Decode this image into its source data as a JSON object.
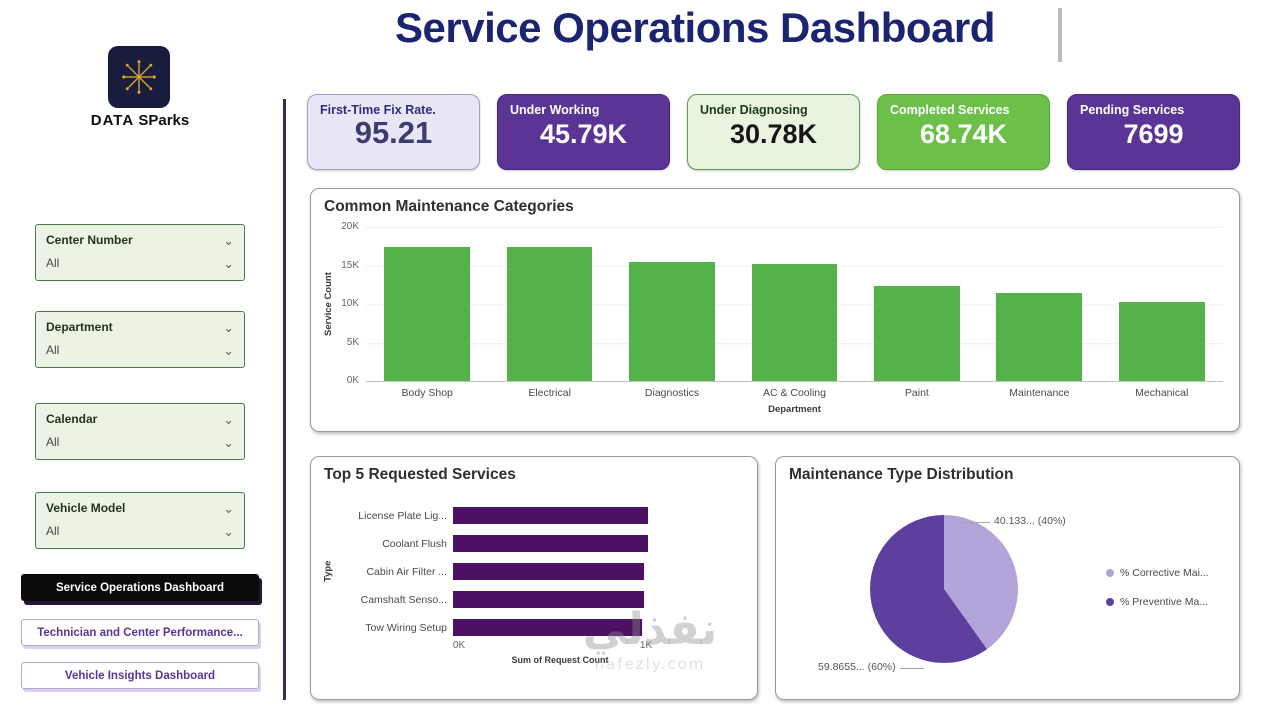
{
  "page": {
    "title": "Service Operations Dashboard",
    "brand": {
      "word1": "DATA",
      "word2": "SParks"
    }
  },
  "icons": {
    "chevron": "⌄"
  },
  "sidebar": {
    "filters": [
      {
        "label": "Center Number",
        "value": "All"
      },
      {
        "label": "Department",
        "value": "All"
      },
      {
        "label": "Calendar",
        "value": "All"
      },
      {
        "label": "Vehicle Model",
        "value": "All"
      }
    ],
    "nav": [
      {
        "label": "Service Operations Dashboard",
        "active": true
      },
      {
        "label": "Technician and Center Performance...",
        "active": false
      },
      {
        "label": "Vehicle Insights Dashboard",
        "active": false
      }
    ]
  },
  "kpis": [
    {
      "label": "First-Time Fix Rate.",
      "value": "95.21",
      "variant": "lavender"
    },
    {
      "label": "Under Working",
      "value": "45.79K",
      "variant": "purple"
    },
    {
      "label": "Under Diagnosing",
      "value": "30.78K",
      "variant": "mint"
    },
    {
      "label": "Completed Services",
      "value": "68.74K",
      "variant": "green"
    },
    {
      "label": "Pending Services",
      "value": "7699",
      "variant": "purple"
    }
  ],
  "colors": {
    "title_navy": "#1b2470",
    "purple_card": "#5a3596",
    "green_card": "#6cc04a",
    "bar_green": "#53b348",
    "bar_purple": "#4c1065",
    "pie_light": "#b2a4d8",
    "pie_dark": "#5d3f9d"
  },
  "chart_data": [
    {
      "type": "bar",
      "title": "Common Maintenance Categories",
      "categories": [
        "Body Shop",
        "Electrical",
        "Diagnostics",
        "AC & Cooling",
        "Paint",
        "Maintenance",
        "Mechanical"
      ],
      "values": [
        17400,
        17400,
        15500,
        15200,
        12400,
        11400,
        10300
      ],
      "xlabel": "Department",
      "ylabel": "Service Count",
      "ylim": [
        0,
        20000
      ],
      "yticks": [
        "20K",
        "15K",
        "10K",
        "5K",
        "0K"
      ],
      "grid": true,
      "bar_color": "#53b348"
    },
    {
      "type": "bar-horizontal",
      "title": "Top 5 Requested Services",
      "categories": [
        "License Plate Lig...",
        "Coolant Flush",
        "Cabin Air Filter ...",
        "Camshaft Senso...",
        "Tow Wiring Setup"
      ],
      "values": [
        1040,
        1040,
        1020,
        1020,
        1010
      ],
      "xlabel": "Sum of Request Count",
      "ylabel": "Type",
      "xlim": [
        0,
        1080
      ],
      "xticks": [
        {
          "label": "0K",
          "pos": 0
        },
        {
          "label": "1K",
          "pos": 1000
        }
      ],
      "bar_color": "#4c1065"
    },
    {
      "type": "pie",
      "title": "Maintenance Type Distribution",
      "legend_position": "right",
      "slices": [
        {
          "label": "% Corrective Mai...",
          "value": 40.133,
          "display": "40.133... (40%)",
          "color": "#b2a4d8"
        },
        {
          "label": "% Preventive Ma...",
          "value": 59.8655,
          "display": "59.8655... (60%)",
          "color": "#5d3f9d"
        }
      ]
    }
  ],
  "watermark": {
    "line1": "نفذلي",
    "line2": "nafezly.com"
  }
}
